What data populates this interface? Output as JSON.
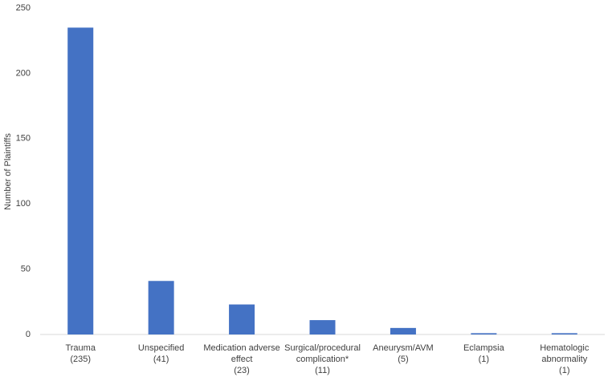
{
  "chart_data": {
    "type": "bar",
    "y_label": "Number of Plaintiffs",
    "categories": [
      [
        "Trauma",
        "(235)"
      ],
      [
        "Unspecified",
        "(41)"
      ],
      [
        "Medication adverse",
        "effect",
        "(23)"
      ],
      [
        "Surgical/procedural",
        "complication*",
        "(11)"
      ],
      [
        "Aneurysm/AVM",
        "(5)"
      ],
      [
        "Eclampsia",
        "(1)"
      ],
      [
        "Hematologic",
        "abnormality",
        "(1)"
      ]
    ],
    "values": [
      235,
      41,
      23,
      11,
      5,
      1,
      1
    ],
    "color": "#4472c4",
    "ylim": [
      0,
      250
    ],
    "yticks": [
      0,
      50,
      100,
      150,
      200,
      250
    ],
    "grid": false
  }
}
